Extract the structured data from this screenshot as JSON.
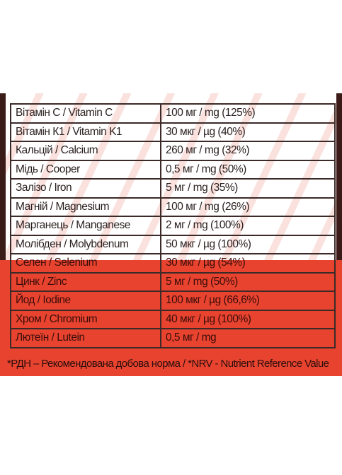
{
  "nutrients": [
    {
      "name": "Вітамін С / Vitamin C",
      "amount": "100 мг / mg (125%)"
    },
    {
      "name": "Вітамін К1 / Vitamin K1",
      "amount": "30 мкг / µg (40%)"
    },
    {
      "name": "Кальцій / Calcium",
      "amount": "260 мг / mg (32%)"
    },
    {
      "name": "Мідь / Cooper",
      "amount": "0,5 мг / mg (50%)"
    },
    {
      "name": "Залізо / Iron",
      "amount": "5 мг / mg (35%)"
    },
    {
      "name": "Магній / Magnesium",
      "amount": "100 мг / mg (26%)"
    },
    {
      "name": "Марганець / Manganese",
      "amount": "2 мг / mg (100%)"
    },
    {
      "name": "Молібден / Molybdenum",
      "amount": "50 мкг / µg (100%)"
    },
    {
      "name": "Селен / Selenium",
      "amount": "30 мкг / µg (54%)"
    },
    {
      "name": "Цинк / Zinc",
      "amount": "5 мг / mg (50%)"
    },
    {
      "name": "Йод / Iodine",
      "amount": "100 мкг / µg (66,6%)"
    },
    {
      "name": "Хром / Chromium",
      "amount": "40 мкг / µg (100%)"
    },
    {
      "name": "Лютеїн / Lutein",
      "amount": "0,5 мг / mg"
    }
  ],
  "footnote": "*РДН – Рекомендована добова норма / *NRV - Nutrient Reference Value",
  "colors": {
    "band": "#e8432f",
    "border": "#3b2a28"
  }
}
